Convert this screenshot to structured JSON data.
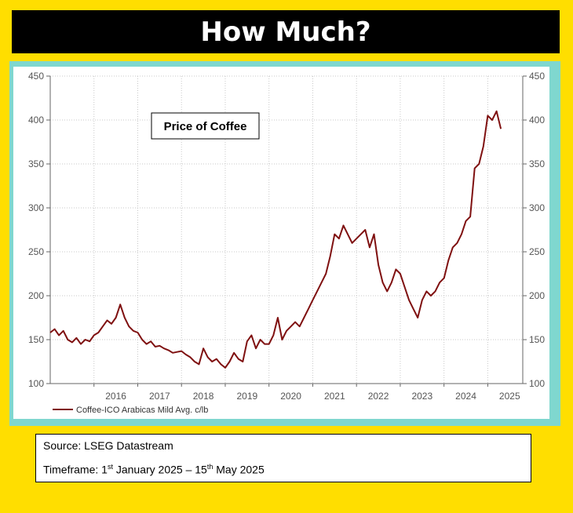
{
  "header": {
    "title": "How Much?"
  },
  "chart_data": {
    "type": "line",
    "annotation": "Price of Coffee",
    "ylim": [
      100,
      450
    ],
    "y_ticks": [
      100,
      150,
      200,
      250,
      300,
      350,
      400,
      450
    ],
    "x_range": [
      2015.0,
      2025.8
    ],
    "x_tick_labels": [
      "2016",
      "2017",
      "2018",
      "2019",
      "2020",
      "2021",
      "2022",
      "2023",
      "2024",
      "2025"
    ],
    "grid": true,
    "legend_position": "bottom-left",
    "series": [
      {
        "name": "Coffee-ICO Arabicas Mild Avg. c/lb",
        "color": "#7F1010",
        "x": [
          2015.0,
          2015.1,
          2015.2,
          2015.3,
          2015.4,
          2015.5,
          2015.6,
          2015.7,
          2015.8,
          2015.9,
          2016.0,
          2016.1,
          2016.2,
          2016.3,
          2016.4,
          2016.5,
          2016.6,
          2016.7,
          2016.8,
          2016.9,
          2017.0,
          2017.1,
          2017.2,
          2017.3,
          2017.4,
          2017.5,
          2017.6,
          2017.7,
          2017.8,
          2017.9,
          2018.0,
          2018.1,
          2018.2,
          2018.3,
          2018.4,
          2018.5,
          2018.6,
          2018.7,
          2018.8,
          2018.9,
          2019.0,
          2019.1,
          2019.2,
          2019.3,
          2019.4,
          2019.5,
          2019.6,
          2019.7,
          2019.8,
          2019.9,
          2020.0,
          2020.1,
          2020.2,
          2020.3,
          2020.4,
          2020.5,
          2020.6,
          2020.7,
          2020.8,
          2020.9,
          2021.0,
          2021.1,
          2021.2,
          2021.3,
          2021.4,
          2021.5,
          2021.6,
          2021.7,
          2021.8,
          2021.9,
          2022.0,
          2022.1,
          2022.2,
          2022.3,
          2022.4,
          2022.5,
          2022.6,
          2022.7,
          2022.8,
          2022.9,
          2023.0,
          2023.1,
          2023.2,
          2023.3,
          2023.4,
          2023.5,
          2023.6,
          2023.7,
          2023.8,
          2023.9,
          2024.0,
          2024.1,
          2024.2,
          2024.3,
          2024.4,
          2024.5,
          2024.6,
          2024.7,
          2024.8,
          2024.9,
          2025.0,
          2025.1,
          2025.2,
          2025.3
        ],
        "values": [
          158,
          162,
          155,
          160,
          150,
          147,
          152,
          145,
          150,
          148,
          155,
          158,
          165,
          172,
          168,
          175,
          190,
          175,
          165,
          160,
          158,
          150,
          145,
          148,
          142,
          143,
          140,
          138,
          135,
          136,
          137,
          133,
          130,
          125,
          122,
          140,
          130,
          125,
          128,
          122,
          118,
          125,
          135,
          128,
          125,
          148,
          155,
          140,
          150,
          145,
          145,
          155,
          175,
          150,
          160,
          165,
          170,
          165,
          175,
          185,
          195,
          205,
          215,
          225,
          245,
          270,
          265,
          280,
          270,
          260,
          265,
          270,
          275,
          255,
          270,
          235,
          215,
          205,
          215,
          230,
          225,
          210,
          195,
          185,
          175,
          195,
          205,
          200,
          205,
          215,
          220,
          240,
          255,
          260,
          270,
          285,
          290,
          345,
          350,
          370,
          405,
          400,
          410,
          390
        ]
      }
    ]
  },
  "footer": {
    "source_text": "Source: LSEG Datastream",
    "timeframe_prefix": "Timeframe: 1",
    "timeframe_sup1": "st",
    "timeframe_middle": " January 2025 – 15",
    "timeframe_sup2": "th",
    "timeframe_suffix": " May 2025"
  }
}
